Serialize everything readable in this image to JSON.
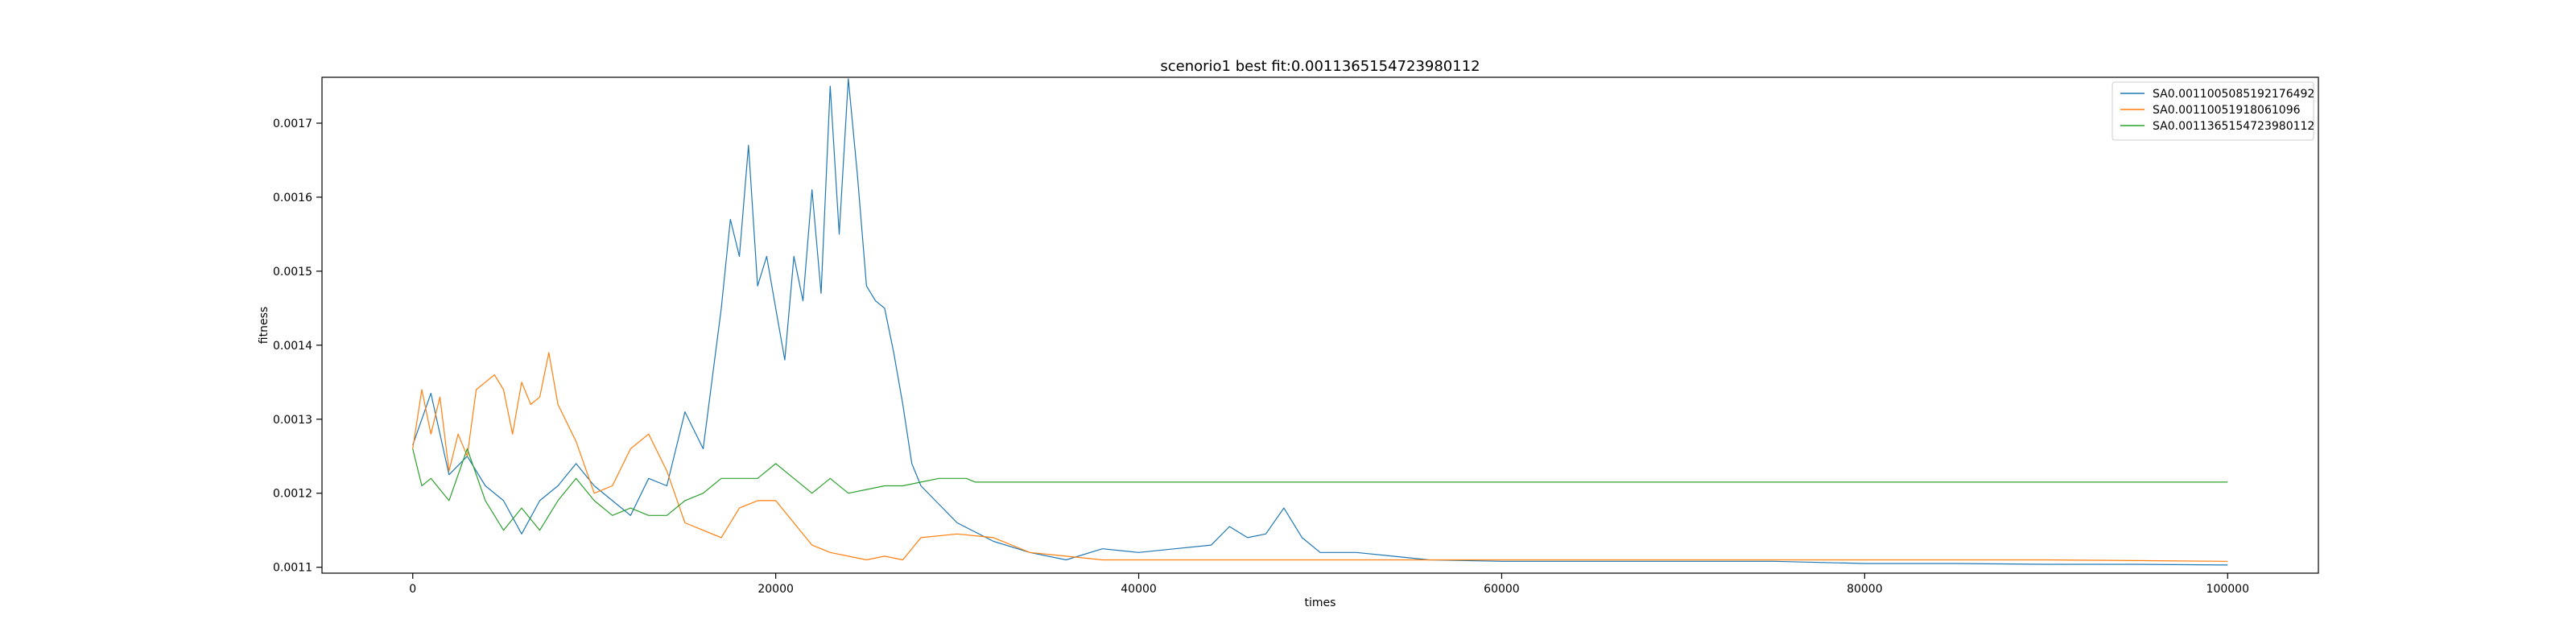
{
  "chart_data": {
    "type": "line",
    "title": "scenorio1 best fit:0.0011365154723980112",
    "xlabel": "times",
    "ylabel": "fitness",
    "xlim": [
      -5000,
      105000
    ],
    "ylim": [
      0.001092,
      0.001762
    ],
    "xticks": [
      0,
      20000,
      40000,
      60000,
      80000,
      100000
    ],
    "xtick_labels": [
      "0",
      "20000",
      "40000",
      "60000",
      "80000",
      "100000"
    ],
    "yticks": [
      0.0011,
      0.0012,
      0.0013,
      0.0014,
      0.0015,
      0.0016,
      0.0017
    ],
    "ytick_labels": [
      "0.0011",
      "0.0012",
      "0.0013",
      "0.0014",
      "0.0015",
      "0.0016",
      "0.0017"
    ],
    "grid": false,
    "legend_position": "top-right",
    "series": [
      {
        "name": "SA0.0011005085192176492",
        "color": "#1f77b4",
        "x": [
          0,
          1000,
          2000,
          3000,
          4000,
          5000,
          6000,
          7000,
          8000,
          9000,
          10000,
          11000,
          12000,
          13000,
          14000,
          15000,
          16000,
          17000,
          17500,
          18000,
          18500,
          19000,
          19500,
          20000,
          20500,
          21000,
          21500,
          22000,
          22500,
          23000,
          23500,
          24000,
          24500,
          25000,
          25500,
          26000,
          26500,
          27000,
          27500,
          28000,
          29000,
          30000,
          32000,
          34000,
          36000,
          38000,
          40000,
          42000,
          44000,
          45000,
          46000,
          47000,
          48000,
          49000,
          50000,
          52000,
          54000,
          56000,
          60000,
          65000,
          70000,
          75000,
          80000,
          85000,
          90000,
          95000,
          100000
        ],
        "y": [
          0.001265,
          0.001335,
          0.001225,
          0.00125,
          0.00121,
          0.00119,
          0.001145,
          0.00119,
          0.00121,
          0.00124,
          0.00121,
          0.00119,
          0.00117,
          0.00122,
          0.00121,
          0.00131,
          0.00126,
          0.00145,
          0.00157,
          0.00152,
          0.00167,
          0.00148,
          0.00152,
          0.00145,
          0.00138,
          0.00152,
          0.00146,
          0.00161,
          0.00147,
          0.00175,
          0.00155,
          0.00176,
          0.00163,
          0.00148,
          0.00146,
          0.00145,
          0.00139,
          0.00132,
          0.00124,
          0.00121,
          0.001185,
          0.00116,
          0.001135,
          0.00112,
          0.00111,
          0.001125,
          0.00112,
          0.001125,
          0.00113,
          0.001155,
          0.00114,
          0.001145,
          0.00118,
          0.00114,
          0.00112,
          0.00112,
          0.001115,
          0.00111,
          0.001108,
          0.001108,
          0.001108,
          0.001108,
          0.001105,
          0.001105,
          0.001104,
          0.001104,
          0.001103
        ]
      },
      {
        "name": "SA0.00110051918061096",
        "color": "#ff7f0e",
        "x": [
          0,
          500,
          1000,
          1500,
          2000,
          2500,
          3000,
          3500,
          4000,
          4500,
          5000,
          5500,
          6000,
          6500,
          7000,
          7500,
          8000,
          9000,
          10000,
          11000,
          12000,
          13000,
          14000,
          15000,
          16000,
          17000,
          18000,
          19000,
          20000,
          21000,
          22000,
          23000,
          24000,
          25000,
          26000,
          27000,
          28000,
          30000,
          32000,
          34000,
          36000,
          38000,
          40000,
          45000,
          50000,
          60000,
          70000,
          80000,
          90000,
          100000
        ],
        "y": [
          0.00126,
          0.00134,
          0.00128,
          0.00133,
          0.00123,
          0.00128,
          0.00125,
          0.00134,
          0.00135,
          0.00136,
          0.00134,
          0.00128,
          0.00135,
          0.00132,
          0.00133,
          0.00139,
          0.00132,
          0.00127,
          0.0012,
          0.00121,
          0.00126,
          0.00128,
          0.00123,
          0.00116,
          0.00115,
          0.00114,
          0.00118,
          0.00119,
          0.00119,
          0.00116,
          0.00113,
          0.00112,
          0.001115,
          0.00111,
          0.001115,
          0.00111,
          0.00114,
          0.001145,
          0.00114,
          0.00112,
          0.001115,
          0.00111,
          0.00111,
          0.00111,
          0.00111,
          0.00111,
          0.00111,
          0.00111,
          0.00111,
          0.001108
        ]
      },
      {
        "name": "SA0.0011365154723980112",
        "color": "#2ca02c",
        "x": [
          0,
          500,
          1000,
          2000,
          3000,
          4000,
          5000,
          6000,
          7000,
          8000,
          9000,
          10000,
          11000,
          12000,
          13000,
          14000,
          15000,
          16000,
          17000,
          18000,
          19000,
          20000,
          21000,
          22000,
          23000,
          24000,
          25000,
          26000,
          27000,
          28000,
          29000,
          30000,
          30500,
          31000,
          32000,
          40000,
          50000,
          60000,
          70000,
          80000,
          90000,
          100000
        ],
        "y": [
          0.00126,
          0.00121,
          0.00122,
          0.00119,
          0.00126,
          0.00119,
          0.00115,
          0.00118,
          0.00115,
          0.00119,
          0.00122,
          0.00119,
          0.00117,
          0.00118,
          0.00117,
          0.00117,
          0.00119,
          0.0012,
          0.00122,
          0.00122,
          0.00122,
          0.00124,
          0.00122,
          0.0012,
          0.00122,
          0.0012,
          0.001205,
          0.00121,
          0.00121,
          0.001215,
          0.00122,
          0.00122,
          0.00122,
          0.001215,
          0.001215,
          0.001215,
          0.001215,
          0.001215,
          0.001215,
          0.001215,
          0.001215,
          0.001215
        ]
      }
    ]
  }
}
